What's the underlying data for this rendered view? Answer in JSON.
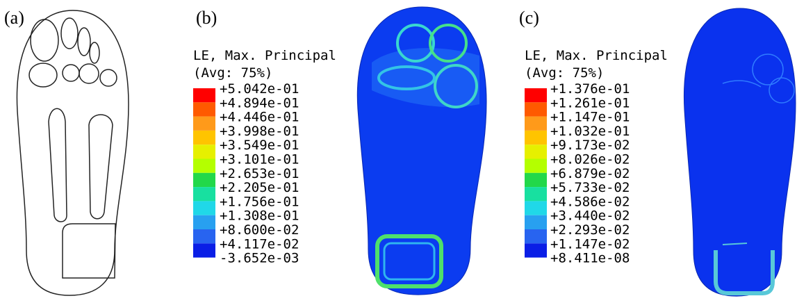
{
  "panels": [
    {
      "label": "(a)"
    },
    {
      "label": "(b)",
      "legend": {
        "title": "LE, Max. Principal",
        "subtitle": "(Avg: 75%)",
        "labels": [
          "+5.042e-01",
          "+4.894e-01",
          "+4.446e-01",
          "+3.998e-01",
          "+3.549e-01",
          "+3.101e-01",
          "+2.653e-01",
          "+2.205e-01",
          "+1.756e-01",
          "+1.308e-01",
          "+8.600e-02",
          "+4.117e-02",
          "-3.652e-03"
        ]
      }
    },
    {
      "label": "(c)",
      "legend": {
        "title": "LE, Max. Principal",
        "subtitle": "(Avg: 75%)",
        "labels": [
          "+1.376e-01",
          "+1.261e-01",
          "+1.147e-01",
          "+1.032e-01",
          "+9.173e-02",
          "+8.026e-02",
          "+6.879e-02",
          "+5.733e-02",
          "+4.586e-02",
          "+3.440e-02",
          "+2.293e-02",
          "+1.147e-02",
          "+8.411e-08"
        ]
      }
    }
  ]
}
